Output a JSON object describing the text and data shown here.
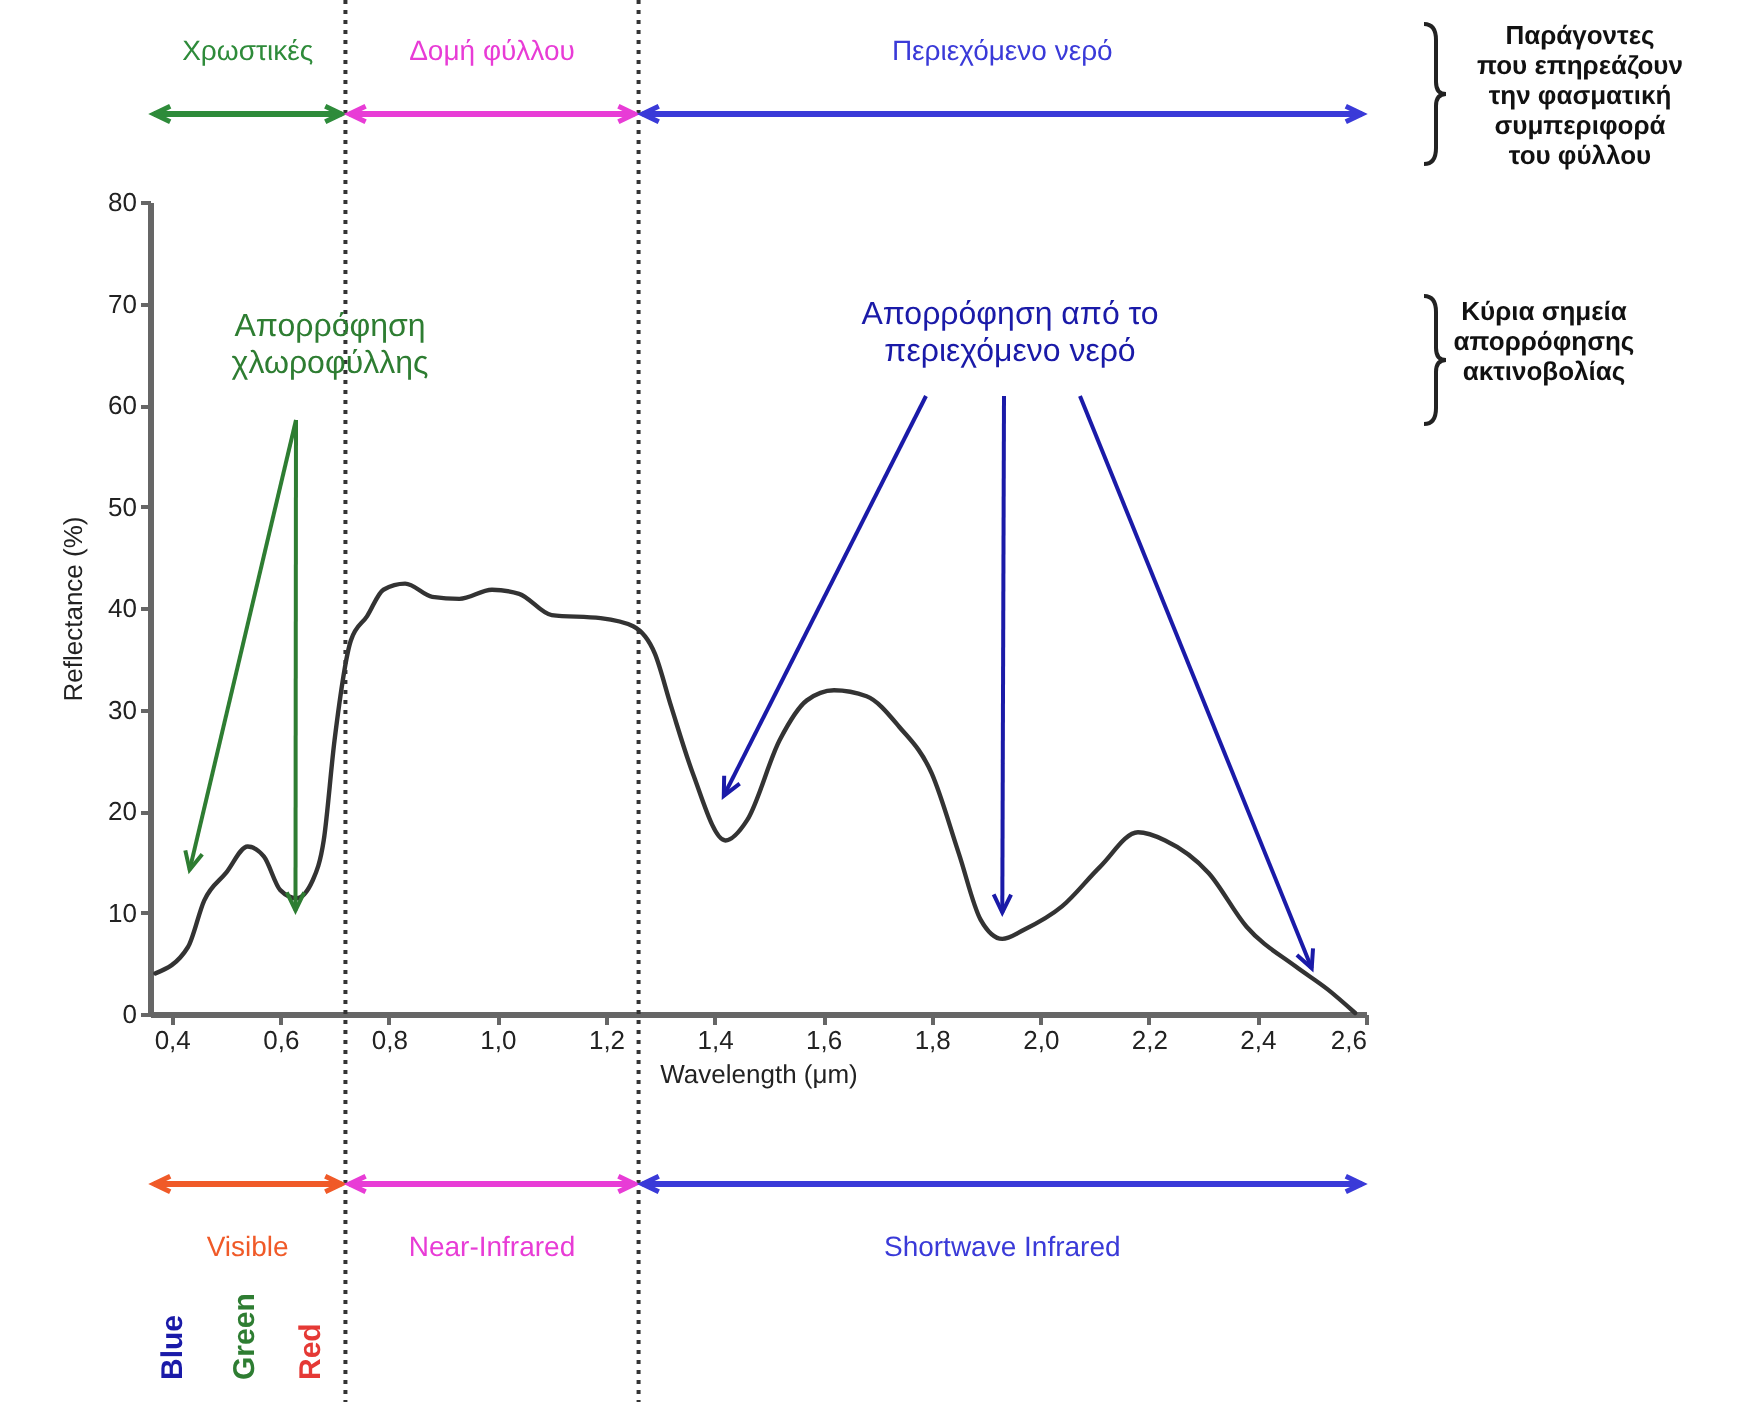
{
  "chart_data": {
    "type": "line",
    "xlabel": "Wavelength (μm)",
    "ylabel": "Reflectance (%)",
    "x": [
      0.37,
      0.43,
      0.46,
      0.5,
      0.54,
      0.57,
      0.6,
      0.63,
      0.66,
      0.68,
      0.7,
      0.73,
      0.76,
      0.79,
      0.83,
      0.88,
      0.93,
      0.99,
      1.04,
      1.1,
      1.19,
      1.25,
      1.29,
      1.32,
      1.36,
      1.42,
      1.46,
      1.52,
      1.57,
      1.62,
      1.68,
      1.74,
      1.8,
      1.85,
      1.89,
      1.93,
      1.97,
      2.04,
      2.11,
      2.18,
      2.23,
      2.31,
      2.38,
      2.47,
      2.53,
      2.58
    ],
    "series": [
      {
        "color": "#333333",
        "values": [
          4.0,
          6.6,
          11.2,
          13.9,
          16.5,
          15.5,
          12.2,
          11.4,
          13.2,
          17.1,
          27,
          36.8,
          39.2,
          41.8,
          42.4,
          41.1,
          40.9,
          41.8,
          41.4,
          39.3,
          39.0,
          38.2,
          35.5,
          30.3,
          23.7,
          17.1,
          19.1,
          27,
          30.9,
          31.9,
          31.3,
          28.3,
          23.7,
          15.8,
          9.3,
          7.4,
          8.3,
          10.6,
          14.5,
          17.9,
          17.1,
          13.9,
          8.6,
          4.7,
          2.4,
          0.1
        ]
      }
    ],
    "xlim": [
      0.36,
      2.6
    ],
    "xticks": [
      {
        "value": 0.4,
        "label": "0,4"
      },
      {
        "value": 0.6,
        "label": "0,6"
      },
      {
        "value": 0.8,
        "label": "0,8"
      },
      {
        "value": 1.0,
        "label": "1,0"
      },
      {
        "value": 1.2,
        "label": "1,2"
      },
      {
        "value": 1.4,
        "label": "1,4"
      },
      {
        "value": 1.6,
        "label": "1,6"
      },
      {
        "value": 1.8,
        "label": "1,8"
      },
      {
        "value": 2.0,
        "label": "2,0"
      },
      {
        "value": 2.2,
        "label": "2,2"
      },
      {
        "value": 2.4,
        "label": "2,4"
      },
      {
        "value": 2.6,
        "label": "2,6"
      }
    ],
    "ylim": [
      0,
      80
    ],
    "yticks": [
      0,
      10,
      20,
      30,
      40,
      50,
      60,
      70,
      80
    ],
    "grid": false,
    "marker": "none",
    "line_style": "solid",
    "ref_lines": [
      {
        "axis": "x",
        "value": 0.72,
        "color": "#333333",
        "line_style": "dotted"
      },
      {
        "axis": "x",
        "value": 1.26,
        "color": "#333333",
        "line_style": "dotted"
      }
    ],
    "annotations": [
      "Απορρόφηση χλωροφύλλης",
      "Απορρόφηση από το περιεχόμενο νερό",
      "Παράγοντες που επηρεάζουν την φασματική συμπεριφορά του φύλλου",
      "Κύρια σημεία απορρόφησης ακτινοβολίας",
      "Χρωστικές",
      "Δομή φύλλου",
      "Περιεχόμενο νερό",
      "Visible",
      "Near-Infrared",
      "Shortwave Infrared",
      "Blue",
      "Green",
      "Red"
    ]
  }
}
